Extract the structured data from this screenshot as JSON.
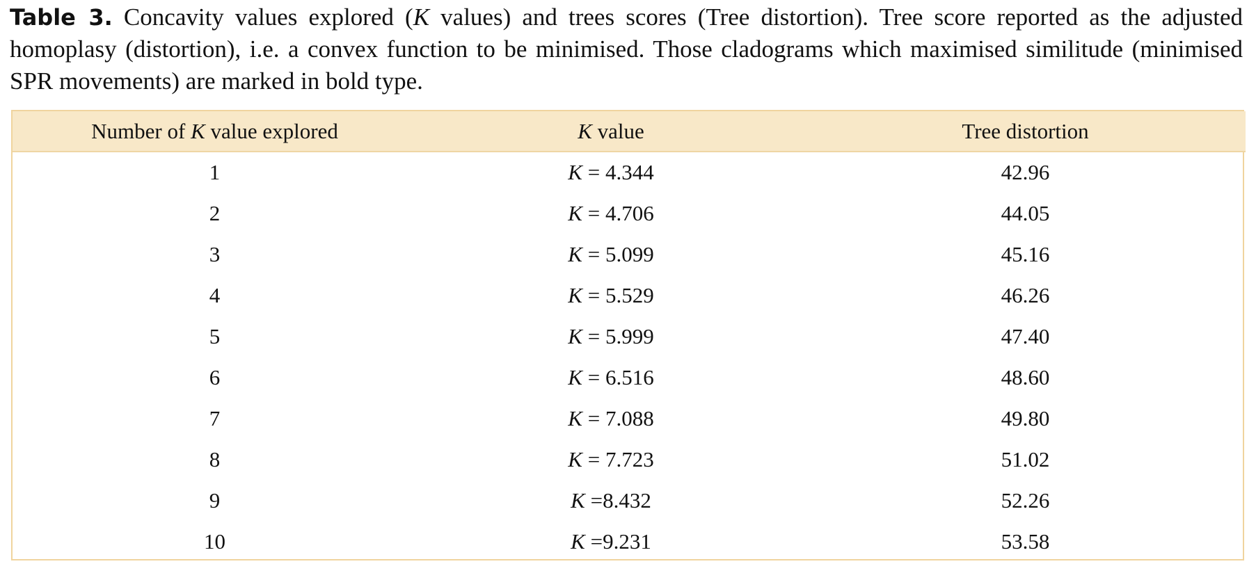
{
  "caption": {
    "label": "Table 3.",
    "text": " Concavity values explored (K values) and trees scores (Tree distortion). Tree score reported as the adjusted homoplasy (distortion), i.e. a convex function to be minimised. Those cladograms which maximised similitude (minimised SPR movements) are marked in bold type."
  },
  "table": {
    "headers": [
      "Number of K value explored",
      "K value",
      "Tree distortion"
    ],
    "rows": [
      {
        "n": "1",
        "k": "K = 4.344",
        "d": "42.96"
      },
      {
        "n": "2",
        "k": "K = 4.706",
        "d": "44.05"
      },
      {
        "n": "3",
        "k": "K = 5.099",
        "d": "45.16"
      },
      {
        "n": "4",
        "k": "K = 5.529",
        "d": "46.26"
      },
      {
        "n": "5",
        "k": "K = 5.999",
        "d": "47.40"
      },
      {
        "n": "6",
        "k": "K = 6.516",
        "d": "48.60"
      },
      {
        "n": "7",
        "k": "K = 7.088",
        "d": "49.80"
      },
      {
        "n": "8",
        "k": "K = 7.723",
        "d": "51.02"
      },
      {
        "n": "9",
        "k": "K =8.432",
        "d": "52.26"
      },
      {
        "n": "10",
        "k": "K =9.231",
        "d": "53.58"
      }
    ]
  }
}
